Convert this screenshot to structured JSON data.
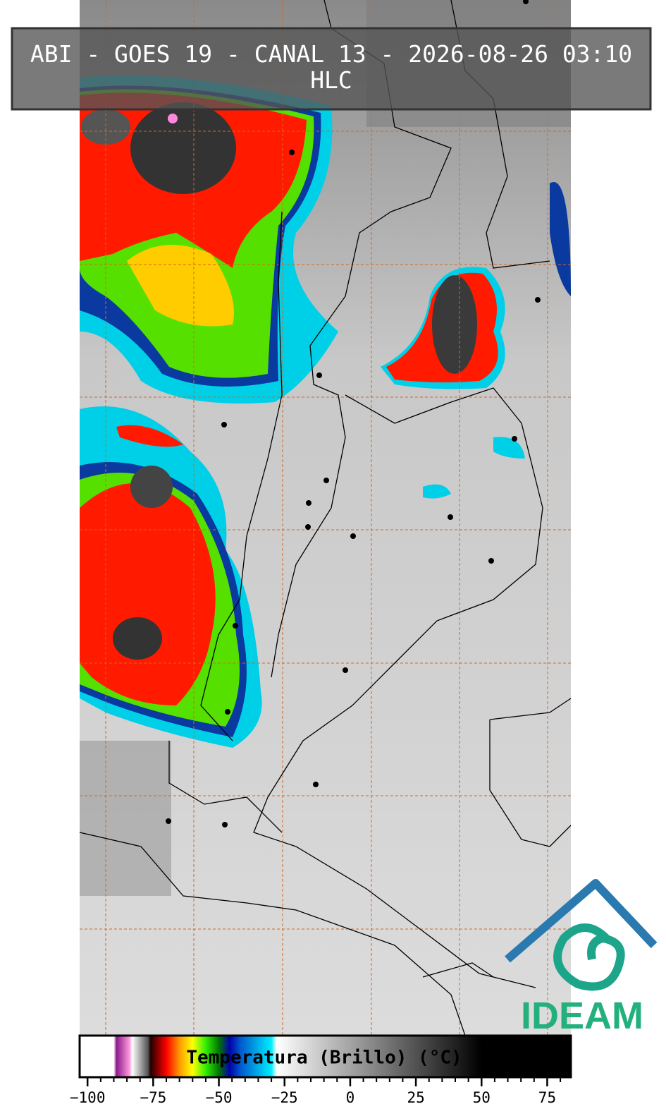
{
  "header": {
    "title": "ABI - GOES 19 - CANAL 13 - 2026-08-26 03:10",
    "subtitle": "HLC"
  },
  "colorbar": {
    "label": "Temperatura (Brillo) (°C)",
    "lim": [
      -103,
      84
    ],
    "ticks": [
      {
        "value": -100,
        "label": "−100"
      },
      {
        "value": -75,
        "label": "−75"
      },
      {
        "value": -50,
        "label": "−50"
      },
      {
        "value": -25,
        "label": "−25"
      },
      0,
      25,
      50,
      75
    ],
    "minor_step": 5,
    "stops": [
      {
        "value": -90,
        "color": "#ffffff"
      },
      {
        "value": -89,
        "color": "#8b1a8b"
      },
      {
        "value": -84,
        "color": "#ff99dd"
      },
      {
        "value": -83,
        "color": "#ffffff"
      },
      {
        "value": -77,
        "color": "#555555"
      },
      {
        "value": -76,
        "color": "#220000"
      },
      {
        "value": -70,
        "color": "#ff0000"
      },
      {
        "value": -65,
        "color": "#ff9900"
      },
      {
        "value": -60,
        "color": "#ffff00"
      },
      {
        "value": -55,
        "color": "#33ee00"
      },
      {
        "value": -50,
        "color": "#007700"
      },
      {
        "value": -46,
        "color": "#0000aa"
      },
      {
        "value": -42,
        "color": "#0055cc"
      },
      {
        "value": -30,
        "color": "#00eeff"
      },
      {
        "value": -28,
        "color": "#ffffff"
      },
      {
        "value": 50,
        "color": "#000000"
      }
    ]
  },
  "logo": {
    "text": "IDEAM"
  }
}
